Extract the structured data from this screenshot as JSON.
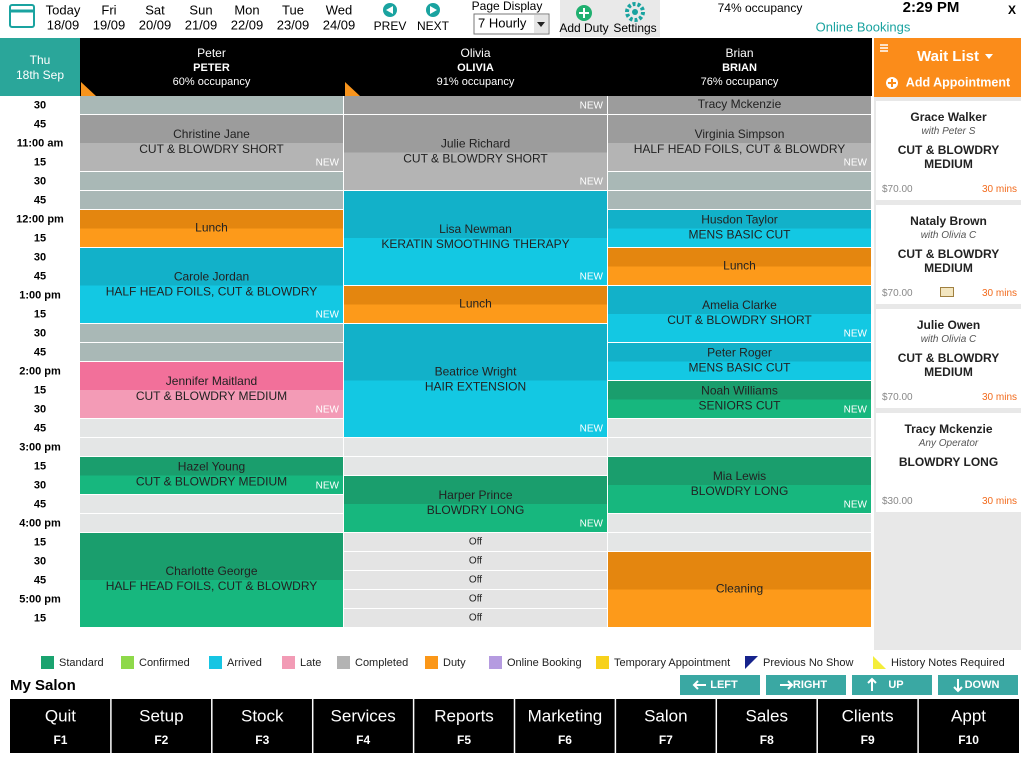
{
  "top_bar": {
    "days": [
      {
        "day": "Today",
        "date": "18/09"
      },
      {
        "day": "Fri",
        "date": "19/09"
      },
      {
        "day": "Sat",
        "date": "20/09"
      },
      {
        "day": "Sun",
        "date": "21/09"
      },
      {
        "day": "Mon",
        "date": "22/09"
      },
      {
        "day": "Tue",
        "date": "23/09"
      },
      {
        "day": "Wed",
        "date": "24/09"
      }
    ],
    "prev": "PREV",
    "next": "NEXT",
    "page_display": {
      "label": "Page Display",
      "value": "7 Hourly"
    },
    "add_duty": "Add Duty",
    "settings": "Settings",
    "occupancy": "74% occupancy",
    "time": "2:29 PM",
    "online_bookings": "Online Bookings",
    "close": "X"
  },
  "date_cell": {
    "weekday": "Thu",
    "date": "18th Sep"
  },
  "times": [
    "30",
    "45",
    "11:00 am",
    "15",
    "30",
    "45",
    "12:00 pm",
    "15",
    "30",
    "45",
    "1:00 pm",
    "15",
    "30",
    "45",
    "2:00 pm",
    "15",
    "30",
    "45",
    "3:00 pm",
    "15",
    "30",
    "45",
    "4:00 pm",
    "15",
    "30",
    "45",
    "5:00 pm",
    "15"
  ],
  "staff": [
    {
      "name": "Peter",
      "code": "PETER",
      "occupancy": "60% occupancy",
      "appointments": [
        {
          "name": "Christine Jane",
          "service": "CUT & BLOWDRY SHORT",
          "tag": "NEW"
        },
        {
          "name": "Lunch"
        },
        {
          "name": "Carole Jordan",
          "service": "HALF HEAD FOILS, CUT & BLOWDRY",
          "tag": "NEW"
        },
        {
          "name": "Jennifer Maitland",
          "service": "CUT & BLOWDRY MEDIUM",
          "tag": "NEW"
        },
        {
          "name": "Hazel Young",
          "service": "CUT & BLOWDRY MEDIUM",
          "tag": "NEW"
        },
        {
          "name": "Charlotte George",
          "service": "HALF HEAD FOILS, CUT & BLOWDRY"
        }
      ]
    },
    {
      "name": "Olivia",
      "code": "OLIVIA",
      "occupancy": "91% occupancy",
      "appointments": [
        {
          "tag": "NEW"
        },
        {
          "name": "Julie Richard",
          "service": "CUT & BLOWDRY SHORT",
          "tag": "NEW"
        },
        {
          "name": "Lisa Newman",
          "service": "KERATIN SMOOTHING THERAPY",
          "tag": "NEW"
        },
        {
          "name": "Lunch"
        },
        {
          "name": "Beatrice Wright",
          "service": "HAIR EXTENSION",
          "tag": "NEW"
        },
        {
          "name": "Harper Prince",
          "service": "BLOWDRY LONG",
          "tag": "NEW"
        },
        {
          "name": "Off"
        },
        {
          "name": "Off"
        },
        {
          "name": "Off"
        },
        {
          "name": "Off"
        },
        {
          "name": "Off"
        }
      ]
    },
    {
      "name": "Brian",
      "code": "BRIAN",
      "occupancy": "76% occupancy",
      "appointments": [
        {
          "name": "Tracy Mckenzie"
        },
        {
          "name": "Virginia Simpson",
          "service": "HALF HEAD FOILS, CUT & BLOWDRY",
          "tag": "NEW"
        },
        {
          "name": "Husdon Taylor",
          "service": "MENS BASIC CUT"
        },
        {
          "name": "Lunch"
        },
        {
          "name": "Amelia Clarke",
          "service": "CUT & BLOWDRY SHORT",
          "tag": "NEW"
        },
        {
          "name": "Peter Roger",
          "service": "MENS BASIC CUT"
        },
        {
          "name": "Noah Williams",
          "service": "SENIORS CUT",
          "tag": "NEW"
        },
        {
          "name": "Mia Lewis",
          "service": "BLOWDRY LONG",
          "tag": "NEW"
        },
        {
          "name": "Cleaning"
        }
      ]
    }
  ],
  "wait_list": {
    "title": "Wait List",
    "add": "Add Appointment",
    "items": [
      {
        "client": "Grace Walker",
        "with": "with Peter S",
        "service": "CUT & BLOWDRY MEDIUM",
        "price": "$70.00",
        "duration": "30 mins"
      },
      {
        "client": "Nataly Brown",
        "with": "with Olivia C",
        "service": "CUT & BLOWDRY MEDIUM",
        "price": "$70.00",
        "duration": "30 mins"
      },
      {
        "client": "Julie Owen",
        "with": "with Olivia C",
        "service": "CUT & BLOWDRY MEDIUM",
        "price": "$70.00",
        "duration": "30 mins"
      },
      {
        "client": "Tracy Mckenzie",
        "with": "Any Operator",
        "service": "BLOWDRY LONG",
        "price": "$30.00",
        "duration": "30 mins"
      }
    ]
  },
  "legend": [
    {
      "name": "Standard",
      "color": "#1aa36f"
    },
    {
      "name": "Confirmed",
      "color": "#8ed94a"
    },
    {
      "name": "Arrived",
      "color": "#16c5e3"
    },
    {
      "name": "Late",
      "color": "#f29bb5"
    },
    {
      "name": "Completed",
      "color": "#b3b3b3"
    },
    {
      "name": "Duty",
      "color": "#fb9718"
    },
    {
      "name": "Online Booking",
      "color": "#b59be0"
    },
    {
      "name": "Temporary Appointment",
      "color": "#f7d11b"
    },
    {
      "name": "Previous No Show",
      "color": "#16238c",
      "marker": "triangle"
    },
    {
      "name": "History Notes Required",
      "color": "#f4ee3a",
      "marker": "triangle"
    }
  ],
  "salon": "My Salon",
  "nav": [
    "LEFT",
    "RIGHT",
    "UP",
    "DOWN"
  ],
  "function_keys": [
    {
      "label": "Quit",
      "key": "F1"
    },
    {
      "label": "Setup",
      "key": "F2"
    },
    {
      "label": "Stock",
      "key": "F3"
    },
    {
      "label": "Services",
      "key": "F4"
    },
    {
      "label": "Reports",
      "key": "F5"
    },
    {
      "label": "Marketing",
      "key": "F6"
    },
    {
      "label": "Salon",
      "key": "F7"
    },
    {
      "label": "Sales",
      "key": "F8"
    },
    {
      "label": "Clients",
      "key": "F9"
    },
    {
      "label": "Appt",
      "key": "F10"
    }
  ]
}
